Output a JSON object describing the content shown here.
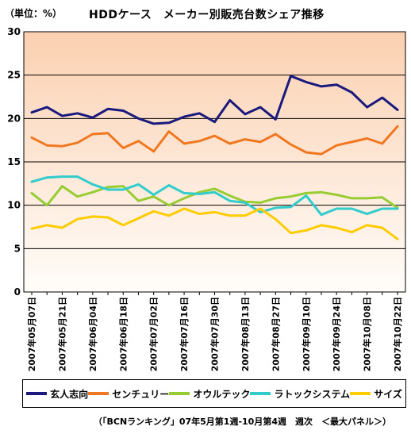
{
  "unit_label": "（単位：%）",
  "footnote": "（「BCNランキング」07年5月第1週-10月第4週　週次　＜最大パネル＞）",
  "chart_data": {
    "type": "line",
    "title": "HDDケース　メーカー別販売台数シェア推移",
    "xlabel": "",
    "ylabel": "",
    "ylim": [
      0,
      30
    ],
    "yticks": [
      0,
      5,
      10,
      15,
      20,
      25,
      30
    ],
    "grid": true,
    "legend_position": "bottom",
    "background_gradient": [
      "#fbd0b0",
      "#fffdfa"
    ],
    "x_tick_labels": [
      "2007年05月07日",
      "2007年05月21日",
      "2007年06月04日",
      "2007年06月18日",
      "2007年07月02日",
      "2007年07月16日",
      "2007年07月30日",
      "2007年08月13日",
      "2007年08月27日",
      "2007年09月10日",
      "2007年09月24日",
      "2007年10月08日",
      "2007年10月22日"
    ],
    "x_tick_every": 2,
    "series": [
      {
        "name": "玄人志向",
        "color": "#1a1a7e",
        "values": [
          20.7,
          21.3,
          20.3,
          20.6,
          20.1,
          21.1,
          20.9,
          20.0,
          19.4,
          19.5,
          20.2,
          20.6,
          19.6,
          22.1,
          20.5,
          21.3,
          19.9,
          24.9,
          24.2,
          23.7,
          23.9,
          23.0,
          21.3,
          22.4,
          21.0
        ]
      },
      {
        "name": "センチュリー",
        "color": "#f07820",
        "values": [
          17.8,
          16.9,
          16.8,
          17.2,
          18.2,
          18.3,
          16.6,
          17.4,
          16.2,
          18.5,
          17.1,
          17.4,
          18.0,
          17.1,
          17.6,
          17.3,
          18.2,
          17.0,
          16.1,
          15.9,
          16.9,
          17.3,
          17.7,
          17.1,
          19.1
        ]
      },
      {
        "name": "オウルテック",
        "color": "#99cc33",
        "values": [
          11.4,
          10.0,
          12.2,
          11.0,
          11.5,
          12.1,
          12.2,
          10.5,
          11.0,
          10.0,
          10.8,
          11.5,
          11.9,
          11.1,
          10.4,
          10.3,
          10.8,
          11.0,
          11.4,
          11.5,
          11.2,
          10.8,
          10.8,
          10.9,
          9.7
        ]
      },
      {
        "name": "ラトックシステム",
        "color": "#33cccc",
        "values": [
          12.7,
          13.2,
          13.3,
          13.3,
          12.4,
          11.8,
          11.8,
          12.4,
          11.2,
          12.3,
          11.4,
          11.3,
          11.5,
          10.5,
          10.3,
          9.2,
          9.7,
          9.8,
          11.1,
          8.9,
          9.6,
          9.6,
          9.0,
          9.6,
          9.6
        ]
      },
      {
        "name": "サイズ",
        "color": "#ffcc00",
        "values": [
          7.3,
          7.7,
          7.4,
          8.4,
          8.7,
          8.6,
          7.7,
          8.5,
          9.3,
          8.8,
          9.6,
          9.0,
          9.2,
          8.8,
          8.8,
          9.6,
          8.4,
          6.8,
          7.1,
          7.7,
          7.4,
          6.9,
          7.7,
          7.4,
          6.1
        ]
      }
    ]
  }
}
